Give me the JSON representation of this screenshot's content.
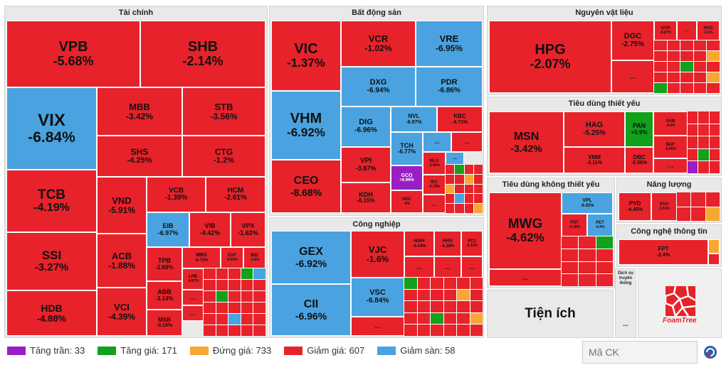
{
  "sectors": {
    "taichinh": "Tài chính",
    "batdongsan": "Bất động sản",
    "nguyenvatlieu": "Nguyên vật liệu",
    "tieudungthietyeu": "Tiêu dùng thiết yếu",
    "tieudungkhongthietyeu": "Tiêu dùng không thiết yếu",
    "nangluong": "Năng lượng",
    "congnghe": "Công nghệ thông tin",
    "congnghiep": "Công nghiệp",
    "tienich": "Tiện ích",
    "dichvu": "Dịch vụ truyền thông"
  },
  "stocks": {
    "VPB": {
      "s": "VPB",
      "c": "-5.68%"
    },
    "SHB": {
      "s": "SHB",
      "c": "-2.14%"
    },
    "VIX": {
      "s": "VIX",
      "c": "-6.84%"
    },
    "MBB": {
      "s": "MBB",
      "c": "-3.42%"
    },
    "STB": {
      "s": "STB",
      "c": "-3.56%"
    },
    "SHS": {
      "s": "SHS",
      "c": "-4.25%"
    },
    "CTG": {
      "s": "CTG",
      "c": "-1.2%"
    },
    "TCB": {
      "s": "TCB",
      "c": "-4.19%"
    },
    "VND": {
      "s": "VND",
      "c": "-5.91%"
    },
    "VCB": {
      "s": "VCB",
      "c": "-1.39%"
    },
    "HCM": {
      "s": "HCM",
      "c": "-2.61%"
    },
    "EIB": {
      "s": "EIB",
      "c": "-6.97%"
    },
    "VIB": {
      "s": "VIB",
      "c": "-4.42%"
    },
    "VPX": {
      "s": "VPX",
      "c": "-1.62%"
    },
    "SSI": {
      "s": "SSI",
      "c": "-3.27%"
    },
    "ACB": {
      "s": "ACB",
      "c": "-1.88%"
    },
    "TPB": {
      "s": "TPB",
      "c": "-2.68%"
    },
    "MBS": {
      "s": "MBS",
      "c": "-6.73%"
    },
    "EVF": {
      "s": "EVF",
      "c": "-6.93%"
    },
    "BID": {
      "s": "BID",
      "c": "-1.8%"
    },
    "HDB": {
      "s": "HDB",
      "c": "-4.88%"
    },
    "VCI": {
      "s": "VCI",
      "c": "-4.39%"
    },
    "ABB": {
      "s": "ABB",
      "c": "-3.14%"
    },
    "LPB": {
      "s": "LPB",
      "c": "-4.87%"
    },
    "MSB": {
      "s": "MSB",
      "c": "-3.18%"
    },
    "VIC": {
      "s": "VIC",
      "c": "-1.37%"
    },
    "VCR": {
      "s": "VCR",
      "c": "-1.02%"
    },
    "VRE": {
      "s": "VRE",
      "c": "-6.95%"
    },
    "DXG": {
      "s": "DXG",
      "c": "-6.94%"
    },
    "PDR": {
      "s": "PDR",
      "c": "-6.86%"
    },
    "VHM": {
      "s": "VHM",
      "c": "-6.92%"
    },
    "DIG": {
      "s": "DIG",
      "c": "-6.96%"
    },
    "NVL": {
      "s": "NVL",
      "c": "-6.97%"
    },
    "KBC": {
      "s": "KBC",
      "c": "-4.71%"
    },
    "TCH": {
      "s": "TCH",
      "c": "-6.77%"
    },
    "NLG": {
      "s": "NLG",
      "c": "-5.46%"
    },
    "VPI": {
      "s": "VPI",
      "c": "-3.87%"
    },
    "GCO": {
      "s": "GCO",
      "c": "+6.96%"
    },
    "IDC": {
      "s": "IDC",
      "c": "-5.78%"
    },
    "CEO": {
      "s": "CEO",
      "c": "-8.68%"
    },
    "KDH": {
      "s": "KDH",
      "c": "-6.15%"
    },
    "HDC": {
      "s": "HDC",
      "c": "-4%"
    },
    "GEX": {
      "s": "GEX",
      "c": "-6.92%"
    },
    "VJC": {
      "s": "VJC",
      "c": "-1.6%"
    },
    "HAH": {
      "s": "HAH",
      "c": "-4.44%"
    },
    "HHV": {
      "s": "HHV",
      "c": "-4.38%"
    },
    "PC1": {
      "s": "PC1",
      "c": "-6.12%"
    },
    "CII": {
      "s": "CII",
      "c": "-6.96%"
    },
    "VSC": {
      "s": "VSC",
      "c": "-6.84%"
    },
    "HPG": {
      "s": "HPG",
      "c": "-2.07%"
    },
    "DGC": {
      "s": "DGC",
      "c": "-2.75%"
    },
    "GVR": {
      "s": "GVR",
      "c": "-5.67%"
    },
    "HSG": {
      "s": "HSG",
      "c": "-6.1%"
    },
    "MSN": {
      "s": "MSN",
      "c": "-3.42%"
    },
    "HAG": {
      "s": "HAG",
      "c": "-5.25%"
    },
    "PAN": {
      "s": "PAN",
      "c": "+0.9%"
    },
    "SAB": {
      "s": "SAB",
      "c": "-4.4%"
    },
    "BAF": {
      "s": "BAF",
      "c": "-6.85%"
    },
    "VNM": {
      "s": "VNM",
      "c": "-2.11%"
    },
    "DBC": {
      "s": "DBC",
      "c": "-2.56%"
    },
    "MWG": {
      "s": "MWG",
      "c": "-4.62%"
    },
    "VPL": {
      "s": "VPL",
      "c": "-6.92%"
    },
    "FRT": {
      "s": "FRT",
      "c": "-5.35%"
    },
    "PET": {
      "s": "PET",
      "c": "-6.9%"
    },
    "PVD": {
      "s": "PVD",
      "c": "-4.45%"
    },
    "PVS": {
      "s": "PVS",
      "c": "-3.51%"
    },
    "FPT": {
      "s": "FPT",
      "c": "-2.4%"
    }
  },
  "more": "...",
  "legend": [
    {
      "label": "Tăng trần: 33",
      "color": "#9b1ec4"
    },
    {
      "label": "Tăng giá: 171",
      "color": "#12a11a"
    },
    {
      "label": "Đứng giá: 733",
      "color": "#f7a832"
    },
    {
      "label": "Giảm giá: 607",
      "color": "#e8222a"
    },
    {
      "label": "Giảm sàn: 58",
      "color": "#4aa3e0"
    }
  ],
  "search": {
    "placeholder": "Mã CK"
  },
  "logo": {
    "text": "FoamTree"
  }
}
